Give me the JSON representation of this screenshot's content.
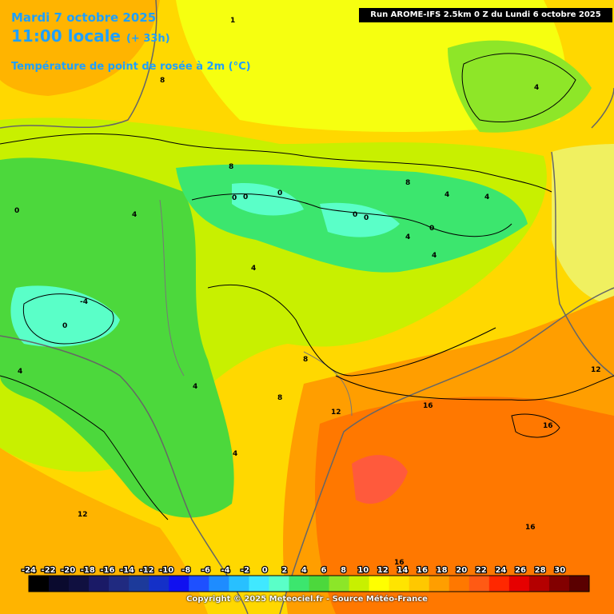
{
  "header": {
    "date": "Mardi 7 octobre 2025",
    "local_time": "11:00 locale",
    "lead_time": "(+ 33h)",
    "parameter": "Température de point de rosée à 2m (°C)"
  },
  "run_info": "Run AROME-IFS 2.5km 0 Z du Lundi 6 octobre 2025",
  "copyright": "Copyright © 2025 Meteociel.fr - Source Météo-France",
  "legend": {
    "ticks": [
      "-24",
      "-22",
      "-20",
      "-18",
      "-16",
      "-14",
      "-12",
      "-10",
      "-8",
      "-6",
      "-4",
      "-2",
      "0",
      "2",
      "4",
      "6",
      "8",
      "10",
      "12",
      "14",
      "16",
      "18",
      "20",
      "22",
      "24",
      "26",
      "28",
      "30"
    ],
    "colors": [
      "#000000",
      "#0a0a2e",
      "#101040",
      "#1a1a66",
      "#202a80",
      "#1c3a9a",
      "#1430c8",
      "#1010f0",
      "#1e50ff",
      "#1e8cff",
      "#28c0ff",
      "#40e8ff",
      "#5affc8",
      "#3ce66e",
      "#4cd83c",
      "#8ce628",
      "#c8f000",
      "#ffff00",
      "#ffe400",
      "#ffc800",
      "#ff9e00",
      "#ff7800",
      "#ff5a14",
      "#ff2800",
      "#e60000",
      "#b40000",
      "#820000",
      "#5a0000"
    ]
  },
  "contour_labels": [
    {
      "text": "8",
      "id": "l1"
    },
    {
      "text": "1",
      "id": "l2"
    },
    {
      "text": "4",
      "id": "l3"
    },
    {
      "text": "0",
      "id": "l4"
    },
    {
      "text": "4",
      "id": "l5"
    },
    {
      "text": "8",
      "id": "l6"
    },
    {
      "text": "0",
      "id": "l7"
    },
    {
      "text": "0",
      "id": "l8"
    },
    {
      "text": "0",
      "id": "l9"
    },
    {
      "text": "8",
      "id": "l10"
    },
    {
      "text": "4",
      "id": "l11"
    },
    {
      "text": "0",
      "id": "l12"
    },
    {
      "text": "0",
      "id": "l13"
    },
    {
      "text": "4",
      "id": "l14"
    },
    {
      "text": "4",
      "id": "l15"
    },
    {
      "text": "-4",
      "id": "l16"
    },
    {
      "text": "0",
      "id": "l17"
    },
    {
      "text": "4",
      "id": "l18"
    },
    {
      "text": "8",
      "id": "l19"
    },
    {
      "text": "4",
      "id": "l20"
    },
    {
      "text": "8",
      "id": "l21"
    },
    {
      "text": "12",
      "id": "l22"
    },
    {
      "text": "16",
      "id": "l23"
    },
    {
      "text": "16",
      "id": "l24"
    },
    {
      "text": "12",
      "id": "l25"
    },
    {
      "text": "4",
      "id": "l26"
    },
    {
      "text": "12",
      "id": "l27"
    },
    {
      "text": "16",
      "id": "l28"
    },
    {
      "text": "16",
      "id": "l29"
    },
    {
      "text": "4",
      "id": "l30"
    },
    {
      "text": "0",
      "id": "l31"
    },
    {
      "text": "4",
      "id": "l32"
    }
  ]
}
